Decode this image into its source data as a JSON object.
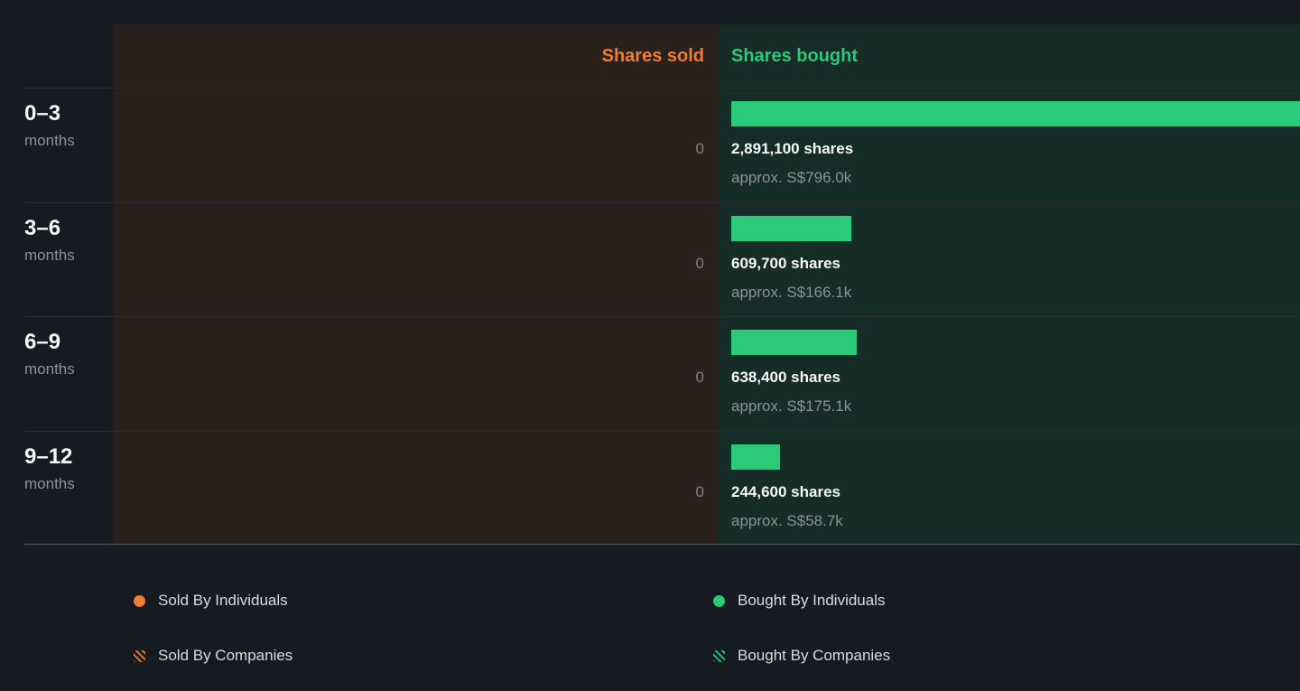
{
  "theme": {
    "background": "#161b22",
    "sold_panel_bg": "#2a201c",
    "bought_panel_bg": "#152c27",
    "sold_color": "#ec7d33",
    "bought_color": "#2bc97a",
    "text_primary": "#f5f6f7",
    "text_muted": "#8b9299"
  },
  "header": {
    "sold": "Shares sold",
    "bought": "Shares bought"
  },
  "rows": [
    {
      "period": "0–3",
      "unit": "months",
      "sold_display": "0",
      "shares_label": "2,891,100 shares",
      "approx_label": "approx. S$796.0k",
      "bar_pct": 100
    },
    {
      "period": "3–6",
      "unit": "months",
      "sold_display": "0",
      "shares_label": "609,700 shares",
      "approx_label": "approx. S$166.1k",
      "bar_pct": 21.1
    },
    {
      "period": "6–9",
      "unit": "months",
      "sold_display": "0",
      "shares_label": "638,400 shares",
      "approx_label": "approx. S$175.1k",
      "bar_pct": 22.1
    },
    {
      "period": "9–12",
      "unit": "months",
      "sold_display": "0",
      "shares_label": "244,600 shares",
      "approx_label": "approx. S$58.7k",
      "bar_pct": 8.5
    }
  ],
  "legend": [
    {
      "label": "Sold By Individuals",
      "swatch": "sold-solid"
    },
    {
      "label": "Bought By Individuals",
      "swatch": "bought-solid"
    },
    {
      "label": "Sold By Companies",
      "swatch": "sold-hatched"
    },
    {
      "label": "Bought By Companies",
      "swatch": "bought-hatched"
    }
  ],
  "chart_data": {
    "type": "bar",
    "orientation": "horizontal",
    "categories": [
      "0–3 months",
      "3–6 months",
      "6–9 months",
      "9–12 months"
    ],
    "series": [
      {
        "name": "Shares sold",
        "color": "#ec7d33",
        "values": [
          0,
          0,
          0,
          0
        ]
      },
      {
        "name": "Shares bought",
        "color": "#2bc97a",
        "values": [
          2891100,
          609700,
          638400,
          244600
        ],
        "approx_values": [
          "S$796.0k",
          "S$166.1k",
          "S$175.1k",
          "S$58.7k"
        ]
      }
    ],
    "xlim": [
      0,
      2891100
    ],
    "grid": false,
    "legend_position": "bottom",
    "legend_entries": [
      "Sold By Individuals",
      "Bought By Individuals",
      "Sold By Companies",
      "Bought By Companies"
    ]
  }
}
